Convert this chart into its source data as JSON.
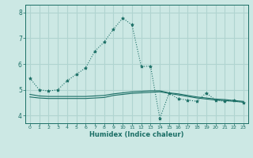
{
  "background_color": "#cce8e4",
  "plot_bg_color": "#cce8e4",
  "grid_color": "#b0d4d0",
  "line_color": "#1a6e65",
  "xlabel": "Humidex (Indice chaleur)",
  "ylim": [
    3.7,
    8.3
  ],
  "xlim": [
    -0.5,
    23.5
  ],
  "yticks": [
    4,
    5,
    6,
    7,
    8
  ],
  "xticks": [
    0,
    1,
    2,
    3,
    4,
    5,
    6,
    7,
    8,
    9,
    10,
    11,
    12,
    13,
    14,
    15,
    16,
    17,
    18,
    19,
    20,
    21,
    22,
    23
  ],
  "line1_x": [
    0,
    1,
    2,
    3,
    4,
    5,
    6,
    7,
    8,
    9,
    10,
    11,
    12,
    13,
    14,
    15,
    16,
    17,
    18,
    19,
    20,
    21,
    22,
    23
  ],
  "line1_y": [
    5.45,
    5.0,
    4.95,
    5.0,
    5.35,
    5.6,
    5.85,
    6.5,
    6.85,
    7.35,
    7.78,
    7.52,
    5.9,
    5.92,
    3.88,
    4.87,
    4.65,
    4.6,
    4.55,
    4.88,
    4.6,
    4.55,
    4.6,
    4.5
  ],
  "line2_x": [
    0,
    1,
    2,
    3,
    4,
    5,
    6,
    7,
    8,
    9,
    10,
    11,
    12,
    13,
    14,
    15,
    16,
    17,
    18,
    19,
    20,
    21,
    22,
    23
  ],
  "line2_y": [
    4.72,
    4.68,
    4.66,
    4.66,
    4.66,
    4.66,
    4.66,
    4.68,
    4.7,
    4.78,
    4.82,
    4.86,
    4.88,
    4.9,
    4.92,
    4.86,
    4.8,
    4.74,
    4.68,
    4.64,
    4.6,
    4.58,
    4.55,
    4.52
  ],
  "line3_x": [
    0,
    1,
    2,
    3,
    4,
    5,
    6,
    7,
    8,
    9,
    10,
    11,
    12,
    13,
    14,
    15,
    16,
    17,
    18,
    19,
    20,
    21,
    22,
    23
  ],
  "line3_y": [
    4.82,
    4.76,
    4.74,
    4.74,
    4.74,
    4.74,
    4.74,
    4.76,
    4.78,
    4.84,
    4.88,
    4.92,
    4.94,
    4.96,
    4.96,
    4.88,
    4.84,
    4.78,
    4.72,
    4.68,
    4.64,
    4.62,
    4.58,
    4.55
  ]
}
